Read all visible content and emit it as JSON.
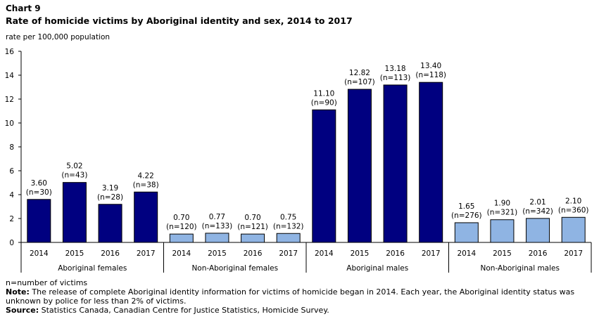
{
  "header": {
    "chart_number": "Chart 9",
    "title": "Rate of homicide victims by Aboriginal identity and sex, 2014 to 2017"
  },
  "chart_data": {
    "type": "bar",
    "title": "Rate of homicide victims by Aboriginal identity and sex, 2014 to 2017",
    "ylabel": "rate per 100,000 population",
    "xlabel": "",
    "ylim": [
      0,
      16
    ],
    "yticks": [
      0,
      2,
      4,
      6,
      8,
      10,
      12,
      14,
      16
    ],
    "grid": false,
    "groups": [
      {
        "name": "Aboriginal females",
        "color": "#000080",
        "bars": [
          {
            "year": "2014",
            "value": 3.6,
            "label": "3.60",
            "n": "(n=30)"
          },
          {
            "year": "2015",
            "value": 5.02,
            "label": "5.02",
            "n": "(n=43)"
          },
          {
            "year": "2016",
            "value": 3.19,
            "label": "3.19",
            "n": "(n=28)"
          },
          {
            "year": "2017",
            "value": 4.22,
            "label": "4.22",
            "n": "(n=38)"
          }
        ]
      },
      {
        "name": "Non-Aboriginal females",
        "color": "#8fb4e3",
        "bars": [
          {
            "year": "2014",
            "value": 0.7,
            "label": "0.70",
            "n": "(n=120)"
          },
          {
            "year": "2015",
            "value": 0.77,
            "label": "0.77",
            "n": "(n=133)"
          },
          {
            "year": "2016",
            "value": 0.7,
            "label": "0.70",
            "n": "(n=121)"
          },
          {
            "year": "2017",
            "value": 0.75,
            "label": "0.75",
            "n": "(n=132)"
          }
        ]
      },
      {
        "name": "Aboriginal males",
        "color": "#000080",
        "bars": [
          {
            "year": "2014",
            "value": 11.1,
            "label": "11.10",
            "n": "(n=90)"
          },
          {
            "year": "2015",
            "value": 12.82,
            "label": "12.82",
            "n": "(n=107)"
          },
          {
            "year": "2016",
            "value": 13.18,
            "label": "13.18",
            "n": "(n=113)"
          },
          {
            "year": "2017",
            "value": 13.4,
            "label": "13.40",
            "n": "(n=118)"
          }
        ]
      },
      {
        "name": "Non-Aboriginal males",
        "color": "#8fb4e3",
        "bars": [
          {
            "year": "2014",
            "value": 1.65,
            "label": "1.65",
            "n": "(n=276)"
          },
          {
            "year": "2015",
            "value": 1.9,
            "label": "1.90",
            "n": "(n=321)"
          },
          {
            "year": "2016",
            "value": 2.01,
            "label": "2.01",
            "n": "(n=342)"
          },
          {
            "year": "2017",
            "value": 2.1,
            "label": "2.10",
            "n": "(n=360)"
          }
        ]
      }
    ]
  },
  "footnotes": {
    "n_definition": "n=number of victims",
    "note_label": "Note:",
    "note_text": " The release of complete Aboriginal identity information for victims of homicide began in 2014. Each year, the Aboriginal identity status was unknown by police for less than 2% of victims.",
    "source_label": "Source:",
    "source_text": " Statistics Canada, Canadian Centre for Justice Statistics, Homicide Survey."
  }
}
